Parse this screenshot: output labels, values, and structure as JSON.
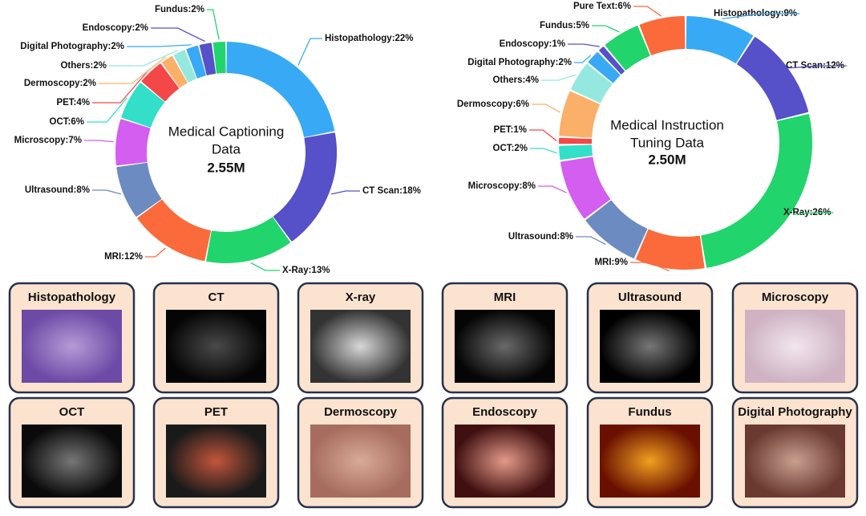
{
  "chart_data": [
    {
      "type": "donut",
      "center_text": [
        "Medical Captioning",
        "Data"
      ],
      "total": "2.55M",
      "value_labels": [
        "Histopathology:22%",
        "CT Scan:18%",
        "X-Ray:13%",
        "MRI:12%",
        "Ultrasound:8%",
        "Microscopy:7%",
        "OCT:6%",
        "PET:4%",
        "Dermoscopy:2%",
        "Others:2%",
        "Digital Photography:2%",
        "Endoscopy:2%",
        "Fundus:2%"
      ],
      "values": [
        22,
        18,
        13,
        12,
        8,
        7,
        6,
        4,
        2,
        2,
        2,
        2,
        2
      ],
      "colors": [
        "#38aaf5",
        "#5650c9",
        "#22d46c",
        "#fa6a3b",
        "#6c8cc1",
        "#d35ef0",
        "#33dfc9",
        "#f44848",
        "#fbb06a",
        "#95e8df",
        "#38aaf5",
        "#5650c9",
        "#22d46c"
      ]
    },
    {
      "type": "donut",
      "center_text": [
        "Medical Instruction",
        "Tuning Data"
      ],
      "total": "2.50M",
      "value_labels": [
        "Histopathology:9%",
        "CT Scan:12%",
        "X-Ray:26%",
        "MRI:9%",
        "Ultrasound:8%",
        "Microscopy:8%",
        "OCT:2%",
        "PET:1%",
        "Dermoscopy:6%",
        "Others:4%",
        "Digital Photography:2%",
        "Endoscopy:1%",
        "Fundus:5%",
        "Pure Text:6%"
      ],
      "values": [
        9,
        12,
        26,
        9,
        8,
        8,
        2,
        1,
        6,
        4,
        2,
        1,
        5,
        6
      ],
      "colors": [
        "#38aaf5",
        "#5650c9",
        "#22d46c",
        "#fa6a3b",
        "#6c8cc1",
        "#d35ef0",
        "#33dfc9",
        "#f44848",
        "#fbb06a",
        "#95e8df",
        "#38aaf5",
        "#5650c9",
        "#22d46c",
        "#fa6a3b"
      ]
    }
  ],
  "panels": [
    "Histopathology",
    "CT",
    "X-ray",
    "MRI",
    "Ultrasound",
    "Microscopy",
    "OCT",
    "PET",
    "Dermoscopy",
    "Endoscopy",
    "Fundus",
    "Digital Photography"
  ]
}
